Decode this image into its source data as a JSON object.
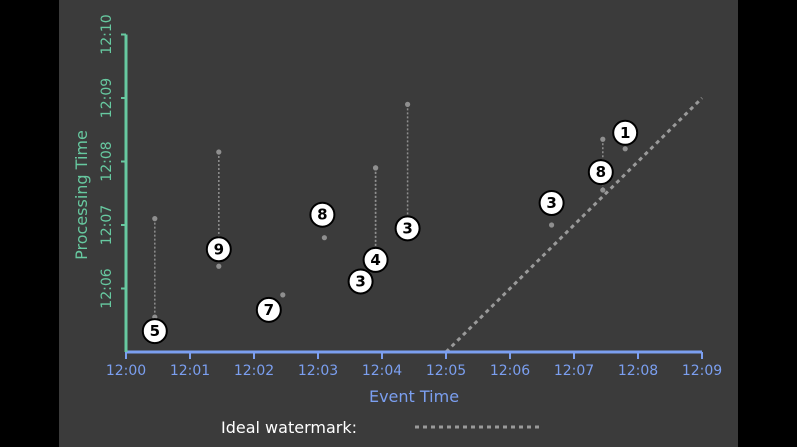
{
  "chart_data": {
    "type": "scatter",
    "xlabel": "Event Time",
    "ylabel": "Processing Time",
    "x_ticks": [
      "12:00",
      "12:01",
      "12:02",
      "12:03",
      "12:04",
      "12:05",
      "12:06",
      "12:07",
      "12:08",
      "12:09"
    ],
    "y_ticks": [
      "12:06",
      "12:07",
      "12:08",
      "12:09",
      "12:10"
    ],
    "x_range_minutes": [
      0,
      9
    ],
    "y_range_minutes": [
      5,
      10
    ],
    "points": [
      {
        "value": "5",
        "event_min": 0.45,
        "proc_top_min": 7.1,
        "proc_bottom_min": 5.55
      },
      {
        "value": "9",
        "event_min": 1.45,
        "proc_top_min": 8.15,
        "proc_bottom_min": 6.35
      },
      {
        "value": "7",
        "event_min": 2.45,
        "proc_top_min": 5.9,
        "proc_bottom_min": 5.9
      },
      {
        "value": "8",
        "event_min": 3.1,
        "proc_top_min": 6.8,
        "proc_bottom_min": 6.8
      },
      {
        "value": "3",
        "event_min": 3.9,
        "proc_top_min": 7.9,
        "proc_bottom_min": 6.3
      },
      {
        "value": "4",
        "event_min": 3.9,
        "proc_top_min": 7.9,
        "proc_bottom_min": 6.45
      },
      {
        "value": "3",
        "event_min": 4.4,
        "proc_top_min": 8.9,
        "proc_bottom_min": 6.9
      },
      {
        "value": "3",
        "event_min": 6.65,
        "proc_top_min": 7.0,
        "proc_bottom_min": 7.0
      },
      {
        "value": "8",
        "event_min": 7.45,
        "proc_top_min": 8.35,
        "proc_bottom_min": 7.55
      },
      {
        "value": "1",
        "event_min": 7.8,
        "proc_top_min": 8.6,
        "proc_bottom_min": 8.2
      }
    ],
    "watermark": {
      "label": "Ideal watermark:",
      "from": [
        5.0,
        5.0
      ],
      "to": [
        9.0,
        9.0
      ]
    }
  }
}
